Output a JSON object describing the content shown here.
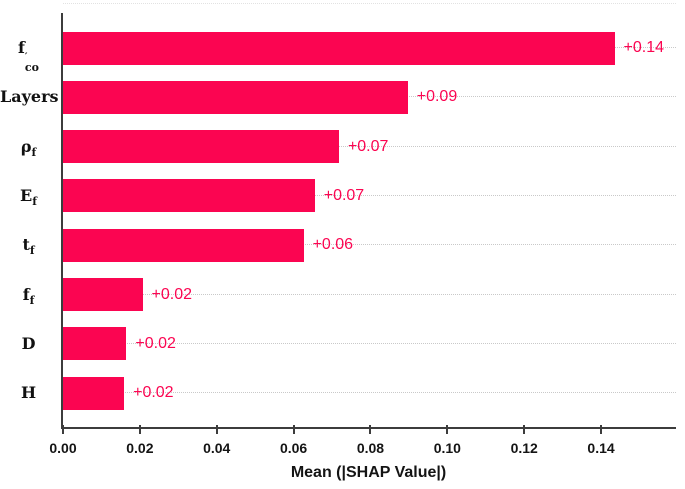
{
  "chart_data": {
    "type": "bar",
    "orientation": "horizontal",
    "title": "",
    "xlabel": "Mean (|SHAP Value|)",
    "ylabel": "",
    "categories": [
      {
        "base": "f",
        "sup": "′",
        "sub": "co"
      },
      {
        "base": "Layers",
        "sup": "",
        "sub": ""
      },
      {
        "base": "ρ",
        "sup": "",
        "sub": "f"
      },
      {
        "base": "E",
        "sup": "",
        "sub": "f"
      },
      {
        "base": "t",
        "sup": "",
        "sub": "f"
      },
      {
        "base": "f",
        "sup": "",
        "sub": "f"
      },
      {
        "base": "D",
        "sup": "",
        "sub": ""
      },
      {
        "base": "H",
        "sup": "",
        "sub": ""
      }
    ],
    "values": [
      0.1435,
      0.0897,
      0.0718,
      0.0655,
      0.0626,
      0.0207,
      0.0165,
      0.0159
    ],
    "value_labels": [
      "+0.14",
      "+0.09",
      "+0.07",
      "+0.07",
      "+0.06",
      "+0.02",
      "+0.02",
      "+0.02"
    ],
    "x_ticks": [
      {
        "value": 0.0,
        "label": "0.00"
      },
      {
        "value": 0.02,
        "label": "0.02"
      },
      {
        "value": 0.04,
        "label": "0.04"
      },
      {
        "value": 0.06,
        "label": "0.06"
      },
      {
        "value": 0.08,
        "label": "0.08"
      },
      {
        "value": 0.1,
        "label": "0.10"
      },
      {
        "value": 0.12,
        "label": "0.12"
      },
      {
        "value": 0.14,
        "label": "0.14"
      }
    ],
    "xlim": [
      0,
      0.1595
    ],
    "grid": "horizontal dotted per category row",
    "legend": "none",
    "colors": {
      "bar": "#FB0551",
      "value_label": "#FB0551",
      "axis_spine": "#3c3c3c",
      "tick_label": "#141414",
      "gridline": "#c9c9c9",
      "background": "#ffffff"
    }
  }
}
